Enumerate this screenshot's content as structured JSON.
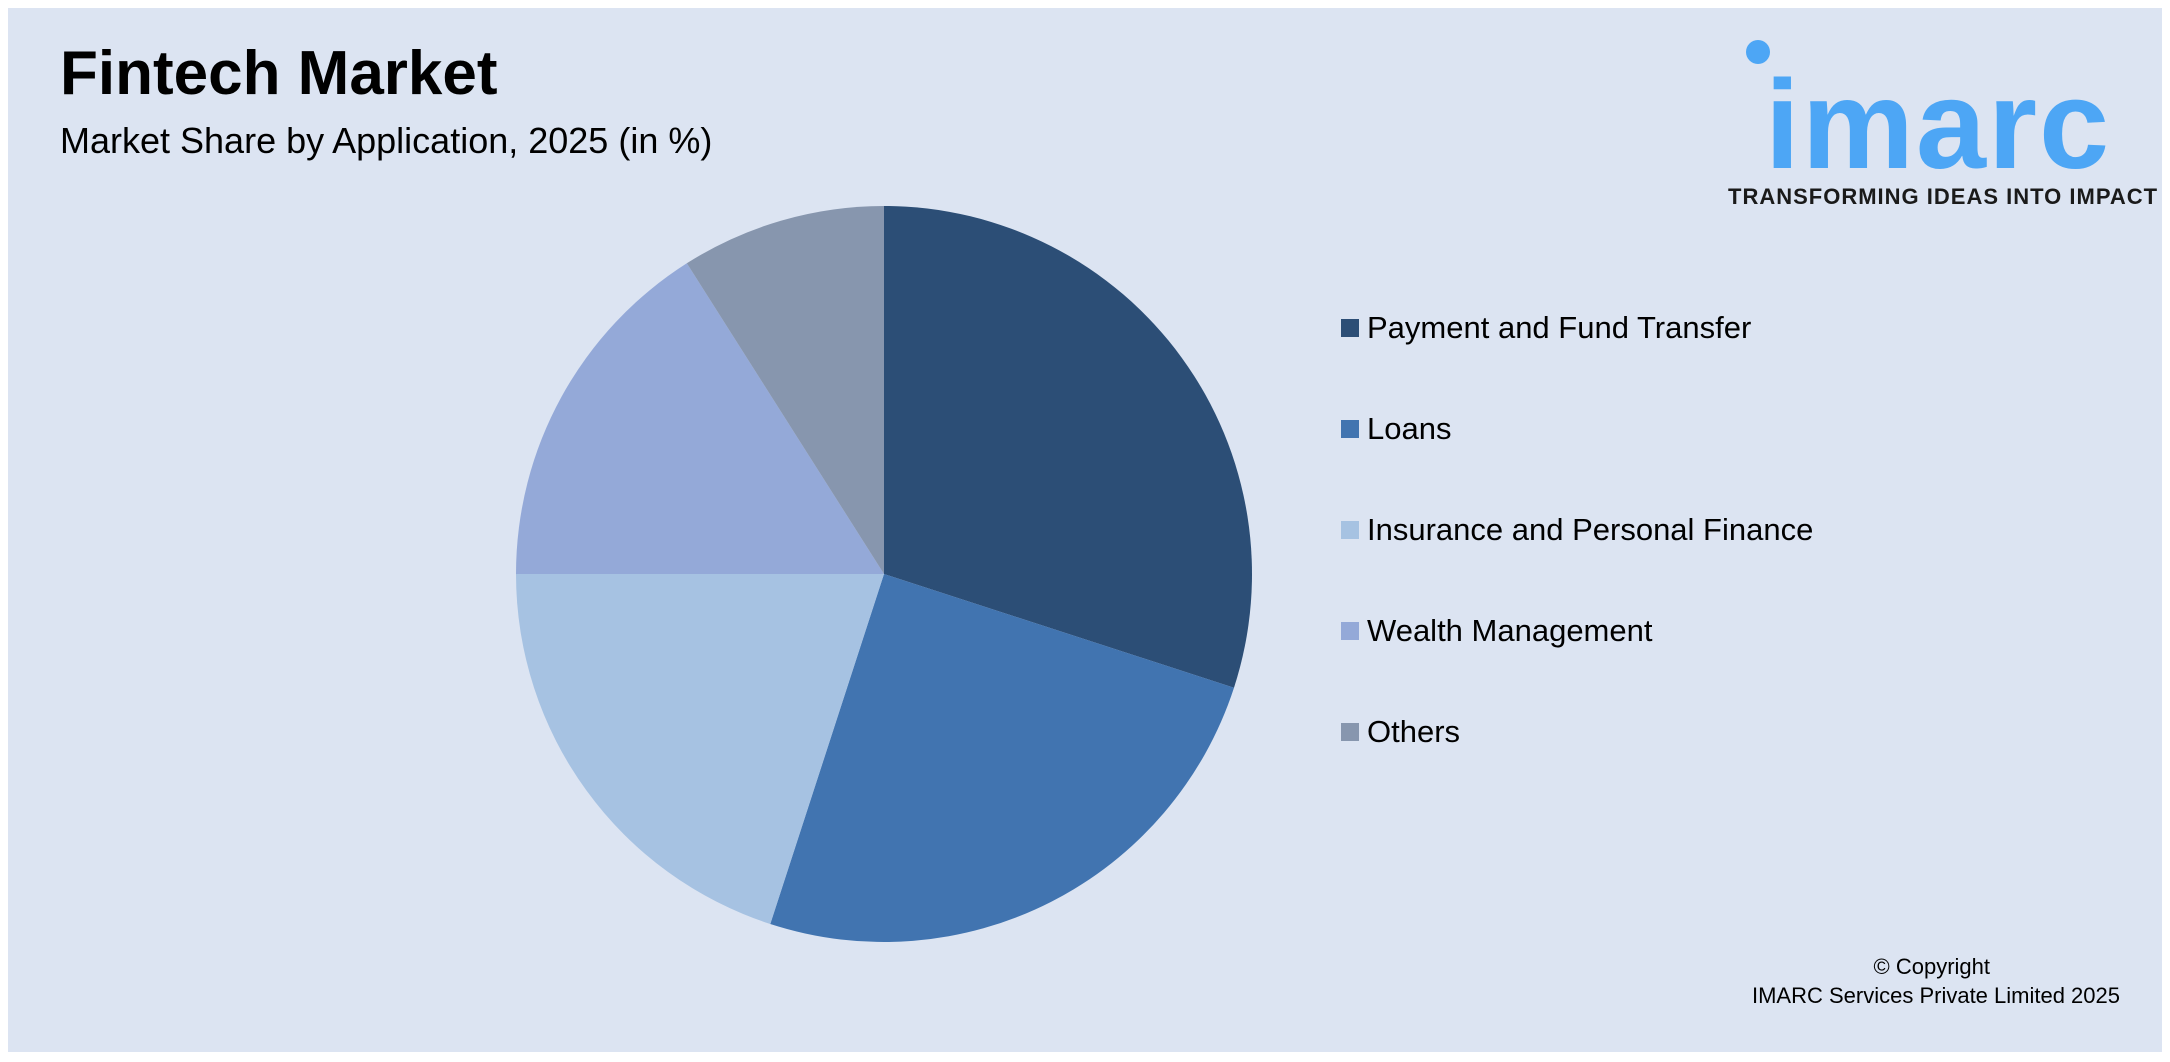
{
  "title": "Fintech Market",
  "subtitle": "Market Share by Application, 2025 (in %)",
  "logo": {
    "text": "imarc",
    "tagline": "TRANSFORMING IDEAS INTO IMPACT",
    "color": "#4da6f5"
  },
  "copyright": {
    "line1": "© Copyright",
    "line2": "IMARC Services Private Limited 2025"
  },
  "chart_data": {
    "type": "pie",
    "title": "Fintech Market",
    "subtitle": "Market Share by Application, 2025 (in %)",
    "legend_position": "right",
    "data_labels": false,
    "slices": [
      {
        "label": "Payment and Fund Transfer",
        "value": 30,
        "color": "#2c4e76"
      },
      {
        "label": "Loans",
        "value": 25,
        "color": "#4174b0"
      },
      {
        "label": "Insurance and Personal Finance",
        "value": 20,
        "color": "#a6c2e2"
      },
      {
        "label": "Wealth Management",
        "value": 16,
        "color": "#94a9d8"
      },
      {
        "label": "Others",
        "value": 9,
        "color": "#8796ae"
      }
    ]
  }
}
